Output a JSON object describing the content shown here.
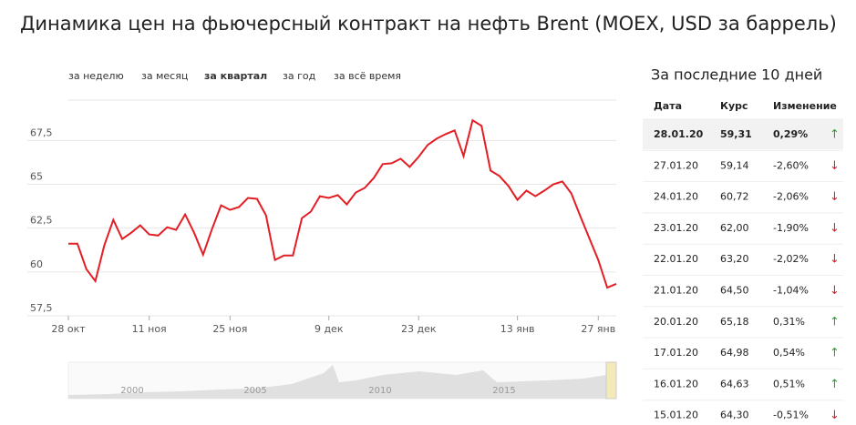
{
  "title": "Динамика цен на фьючерсный контракт на нефть Brent (MOEX, USD за баррель)",
  "tabs": [
    "за неделю",
    "за месяц",
    "за квартал",
    "за год",
    "за всё время"
  ],
  "chart_data": {
    "type": "line",
    "color": "#e31e24",
    "categories": [
      "28 окт",
      null,
      null,
      null,
      null,
      null,
      null,
      null,
      null,
      "11 ноя",
      null,
      null,
      null,
      null,
      null,
      null,
      null,
      null,
      "25 ноя",
      null,
      null,
      null,
      null,
      null,
      null,
      null,
      null,
      null,
      null,
      "9 дек",
      null,
      null,
      null,
      null,
      null,
      null,
      null,
      null,
      null,
      "23 дек",
      null,
      null,
      null,
      null,
      null,
      null,
      null,
      null,
      null,
      null,
      "13 янв",
      null,
      null,
      null,
      null,
      null,
      null,
      null,
      null,
      "27 янв",
      null,
      null
    ],
    "values": [
      61.61,
      61.61,
      60.16,
      59.48,
      61.51,
      62.97,
      61.88,
      62.24,
      62.66,
      62.14,
      62.08,
      62.55,
      62.4,
      63.28,
      62.24,
      60.99,
      62.45,
      63.8,
      63.54,
      63.7,
      64.22,
      64.17,
      63.23,
      60.68,
      60.94,
      60.94,
      63.07,
      63.44,
      64.32,
      64.22,
      64.38,
      63.85,
      64.53,
      64.79,
      65.36,
      66.15,
      66.2,
      66.46,
      65.99,
      66.56,
      67.24,
      67.6,
      67.86,
      68.07,
      66.61,
      68.65,
      68.33,
      65.78,
      65.47,
      64.9,
      64.11,
      64.64,
      64.32,
      64.64,
      65.0,
      65.16,
      64.48,
      63.18,
      61.93,
      60.68,
      59.11,
      59.32
    ],
    "ylim": [
      57.5,
      69.8
    ],
    "yticks": [
      {
        "value": 57.5,
        "label": "57,5"
      },
      60,
      {
        "value": 62.5,
        "label": "62,5"
      },
      65,
      {
        "value": 67.5,
        "label": "67,5"
      }
    ],
    "grid": true,
    "navigator_labels": [
      "2000",
      "2005",
      "2010",
      "2015"
    ]
  },
  "table": {
    "title": "За последние 10 дней",
    "header": [
      "Дата",
      "Курс",
      "Изменение"
    ],
    "rows": [
      [
        "28.01.20",
        "59,31",
        "0,29%",
        "↑"
      ],
      [
        "27.01.20",
        "59,14",
        "-2,60%",
        "↓"
      ],
      [
        "24.01.20",
        "60,72",
        "-2,06%",
        "↓"
      ],
      [
        "23.01.20",
        "62,00",
        "-1,90%",
        "↓"
      ],
      [
        "22.01.20",
        "63,20",
        "-2,02%",
        "↓"
      ],
      [
        "21.01.20",
        "64,50",
        "-1,04%",
        "↓"
      ],
      [
        "20.01.20",
        "65,18",
        "0,31%",
        "↑"
      ],
      [
        "17.01.20",
        "64,98",
        "0,54%",
        "↑"
      ],
      [
        "16.01.20",
        "64,63",
        "0,51%",
        "↑"
      ],
      [
        "15.01.20",
        "64,30",
        "-0,51%",
        "↓"
      ]
    ]
  }
}
